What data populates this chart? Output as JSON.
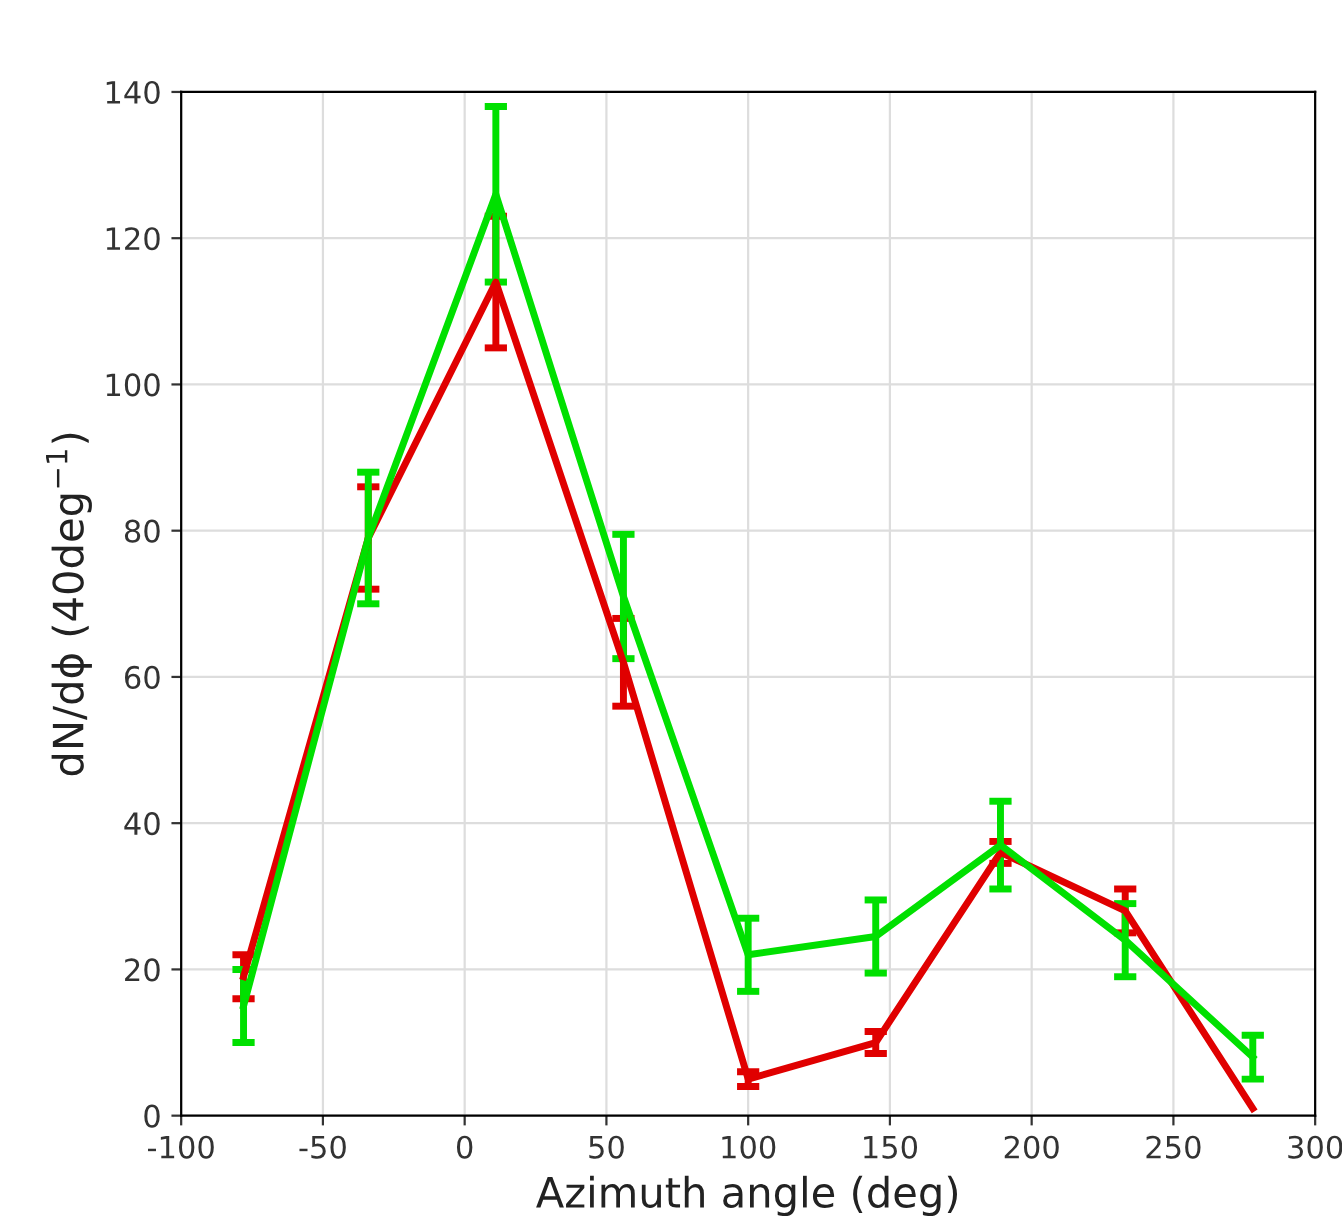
{
  "chart_data": {
    "type": "line",
    "xlabel": "Azimuth angle (deg)",
    "ylabel": "dN/dϕ (40deg$^{−1}$)",
    "x": [
      -78,
      -34,
      11,
      56,
      100,
      145,
      189,
      233,
      278
    ],
    "series": [
      {
        "color": "#e00000",
        "values": [
          19,
          79,
          114,
          62,
          5,
          10,
          36,
          28,
          1
        ],
        "errors": [
          3,
          7,
          9,
          6,
          1,
          1.5,
          1.5,
          3,
          null
        ]
      },
      {
        "color": "#00e000",
        "values": [
          15,
          79,
          126,
          71,
          22,
          24.5,
          37,
          24,
          8
        ],
        "errors": [
          5,
          9,
          12,
          8.5,
          5,
          5,
          6,
          5,
          3
        ]
      }
    ],
    "xlim": [
      -100,
      300
    ],
    "xticks": [
      -100,
      -50,
      0,
      50,
      100,
      150,
      200,
      250,
      300
    ],
    "ylim": [
      0,
      140
    ],
    "yticks": [
      0,
      20,
      40,
      60,
      80,
      100,
      120,
      140
    ],
    "grid": true,
    "marker": "none",
    "line_style": "solid"
  }
}
